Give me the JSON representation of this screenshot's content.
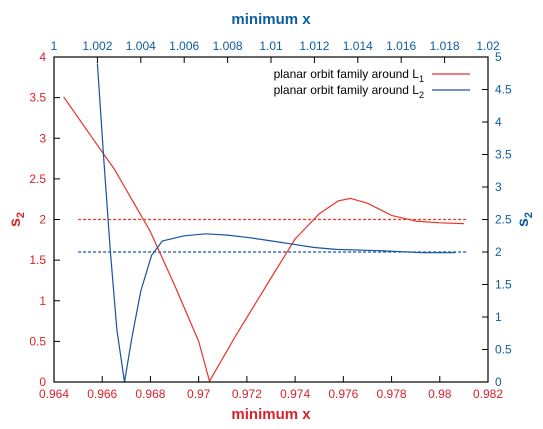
{
  "chart_data": {
    "type": "line",
    "title": "",
    "colors": {
      "red": "#e8342b",
      "blue": "#1454a0",
      "red_text": "#d8232a",
      "blue_text": "#0d5ea0",
      "frame": "#000000"
    },
    "x_bottom": {
      "label": "minimum x",
      "range": [
        0.964,
        0.982
      ],
      "ticks": [
        "0.964",
        "0.966",
        "0.968",
        "0.97",
        "0.972",
        "0.974",
        "0.976",
        "0.978",
        "0.98",
        "0.982"
      ]
    },
    "x_top": {
      "label": "minimum x",
      "range": [
        1.0,
        1.02
      ],
      "ticks": [
        "1",
        "1.002",
        "1.004",
        "1.006",
        "1.008",
        "1.01",
        "1.012",
        "1.014",
        "1.016",
        "1.018",
        "1.02"
      ]
    },
    "y_left": {
      "label_main": "s",
      "label_sub": "2",
      "range": [
        0,
        4
      ],
      "ticks": [
        "0",
        "0.5",
        "1",
        "1.5",
        "2",
        "2.5",
        "3",
        "3.5",
        "4"
      ]
    },
    "y_right": {
      "label_main": "s",
      "label_sub": "2",
      "range": [
        0,
        5
      ],
      "ticks": [
        "0",
        "0.5",
        "1",
        "1.5",
        "2",
        "2.5",
        "3",
        "3.5",
        "4",
        "4.5",
        "5"
      ]
    },
    "grid": false,
    "legend_position": "top-right",
    "series": [
      {
        "name_main": "planar orbit family around L",
        "name_sub": "1",
        "color": "red",
        "axis": "bottom-left",
        "points": [
          [
            0.9644,
            3.51
          ],
          [
            0.9656,
            3.0
          ],
          [
            0.9665,
            2.62
          ],
          [
            0.968,
            1.85
          ],
          [
            0.969,
            1.19
          ],
          [
            0.97,
            0.5
          ],
          [
            0.97045,
            0.01
          ],
          [
            0.9715,
            0.55
          ],
          [
            0.973,
            1.28
          ],
          [
            0.974,
            1.76
          ],
          [
            0.975,
            2.07
          ],
          [
            0.9758,
            2.23
          ],
          [
            0.9763,
            2.26
          ],
          [
            0.977,
            2.2
          ],
          [
            0.978,
            2.05
          ],
          [
            0.979,
            1.98
          ],
          [
            0.98,
            1.96
          ],
          [
            0.981,
            1.95
          ]
        ]
      },
      {
        "name_main": "planar orbit family around L",
        "name_sub": "2",
        "color": "blue",
        "axis": "top-right",
        "points": [
          [
            1.002,
            4.9
          ],
          [
            1.0023,
            3.4
          ],
          [
            1.0026,
            2.0
          ],
          [
            1.0029,
            0.8
          ],
          [
            1.00325,
            0.0
          ],
          [
            1.0036,
            0.7
          ],
          [
            1.004,
            1.4
          ],
          [
            1.0045,
            1.95
          ],
          [
            1.005,
            2.17
          ],
          [
            1.006,
            2.25
          ],
          [
            1.007,
            2.28
          ],
          [
            1.008,
            2.26
          ],
          [
            1.009,
            2.22
          ],
          [
            1.01,
            2.17
          ],
          [
            1.011,
            2.12
          ],
          [
            1.012,
            2.07
          ],
          [
            1.013,
            2.04
          ],
          [
            1.015,
            2.02
          ],
          [
            1.017,
            1.99
          ],
          [
            1.0185,
            1.99
          ]
        ]
      }
    ],
    "reference_lines": [
      {
        "axis": "left",
        "value": 2.0,
        "color": "red",
        "style": "dashed",
        "x_range": [
          0.965,
          0.9811
        ]
      },
      {
        "axis": "right",
        "value": 2.0,
        "color": "blue",
        "style": "dashed",
        "x_range": [
          0.965,
          0.9811
        ]
      }
    ]
  }
}
